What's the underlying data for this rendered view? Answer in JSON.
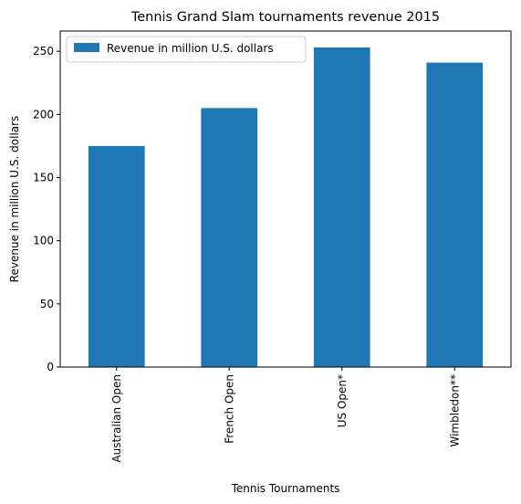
{
  "chart_data": {
    "type": "bar",
    "title": "Tennis Grand Slam tournaments revenue 2015",
    "xlabel": "Tennis Tournaments",
    "ylabel": "Revenue in million U.S. dollars",
    "categories": [
      "Australian Open",
      "French Open",
      "US Open*",
      "Wimbledon**"
    ],
    "series": [
      {
        "name": "Revenue in million U.S. dollars",
        "values": [
          175,
          205,
          253,
          241
        ],
        "color": "#1f77b4"
      }
    ],
    "ylim": [
      0,
      266
    ],
    "yticks": [
      0,
      50,
      100,
      150,
      200,
      250
    ],
    "grid": false,
    "legend_position": "top-left"
  }
}
